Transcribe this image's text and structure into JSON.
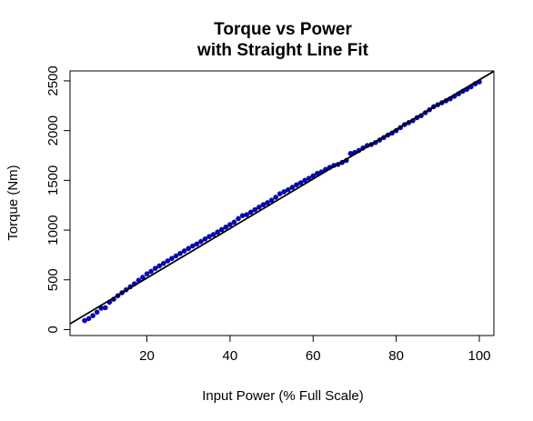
{
  "chart_data": {
    "type": "scatter",
    "title": "Torque vs Power",
    "subtitle": "with Straight Line Fit",
    "xlabel": "Input Power (% Full Scale)",
    "ylabel": "Torque (Nm)",
    "xlim": [
      1.5,
      103.5
    ],
    "ylim": [
      -60,
      2600
    ],
    "x_ticks": [
      20,
      40,
      60,
      80,
      100
    ],
    "y_ticks": [
      0,
      500,
      1000,
      1500,
      2000,
      2500
    ],
    "x_tick_labels": [
      "20",
      "40",
      "60",
      "80",
      "100"
    ],
    "y_tick_labels": [
      "0",
      "500",
      "1000",
      "1500",
      "2000",
      "2500"
    ],
    "grid": false,
    "legend": "none",
    "point_color": "#0000cc",
    "fit_line": {
      "name": "Straight Line Fit",
      "slope": 24.9,
      "intercept": 20,
      "color": "#000000"
    },
    "series": [
      {
        "points": [
          [
            5,
            90
          ],
          [
            6,
            110
          ],
          [
            7,
            140
          ],
          [
            8,
            175
          ],
          [
            9,
            215
          ],
          [
            10,
            220
          ],
          [
            11,
            275
          ],
          [
            12,
            305
          ],
          [
            13,
            340
          ],
          [
            14,
            370
          ],
          [
            15,
            400
          ],
          [
            16,
            430
          ],
          [
            17,
            460
          ],
          [
            18,
            495
          ],
          [
            19,
            525
          ],
          [
            20,
            560
          ],
          [
            21,
            585
          ],
          [
            22,
            615
          ],
          [
            23,
            640
          ],
          [
            24,
            665
          ],
          [
            25,
            690
          ],
          [
            26,
            715
          ],
          [
            27,
            740
          ],
          [
            28,
            765
          ],
          [
            29,
            790
          ],
          [
            30,
            815
          ],
          [
            31,
            840
          ],
          [
            32,
            860
          ],
          [
            33,
            885
          ],
          [
            34,
            910
          ],
          [
            35,
            935
          ],
          [
            36,
            955
          ],
          [
            37,
            980
          ],
          [
            38,
            1005
          ],
          [
            39,
            1030
          ],
          [
            40,
            1055
          ],
          [
            41,
            1080
          ],
          [
            42,
            1115
          ],
          [
            43,
            1145
          ],
          [
            44,
            1155
          ],
          [
            45,
            1180
          ],
          [
            46,
            1205
          ],
          [
            47,
            1230
          ],
          [
            48,
            1255
          ],
          [
            49,
            1275
          ],
          [
            50,
            1300
          ],
          [
            51,
            1330
          ],
          [
            52,
            1365
          ],
          [
            53,
            1385
          ],
          [
            54,
            1405
          ],
          [
            55,
            1430
          ],
          [
            56,
            1455
          ],
          [
            57,
            1475
          ],
          [
            58,
            1500
          ],
          [
            59,
            1520
          ],
          [
            60,
            1545
          ],
          [
            61,
            1570
          ],
          [
            62,
            1585
          ],
          [
            63,
            1610
          ],
          [
            64,
            1630
          ],
          [
            65,
            1650
          ],
          [
            66,
            1660
          ],
          [
            67,
            1680
          ],
          [
            68,
            1700
          ],
          [
            69,
            1770
          ],
          [
            70,
            1780
          ],
          [
            71,
            1800
          ],
          [
            72,
            1825
          ],
          [
            73,
            1850
          ],
          [
            74,
            1860
          ],
          [
            75,
            1880
          ],
          [
            76,
            1905
          ],
          [
            77,
            1930
          ],
          [
            78,
            1955
          ],
          [
            79,
            1975
          ],
          [
            80,
            2000
          ],
          [
            81,
            2030
          ],
          [
            82,
            2060
          ],
          [
            83,
            2080
          ],
          [
            84,
            2100
          ],
          [
            85,
            2130
          ],
          [
            86,
            2150
          ],
          [
            87,
            2180
          ],
          [
            88,
            2210
          ],
          [
            89,
            2240
          ],
          [
            90,
            2260
          ],
          [
            91,
            2280
          ],
          [
            92,
            2300
          ],
          [
            93,
            2320
          ],
          [
            94,
            2345
          ],
          [
            95,
            2370
          ],
          [
            96,
            2395
          ],
          [
            97,
            2415
          ],
          [
            98,
            2440
          ],
          [
            99,
            2470
          ],
          [
            100,
            2490
          ]
        ]
      }
    ]
  }
}
